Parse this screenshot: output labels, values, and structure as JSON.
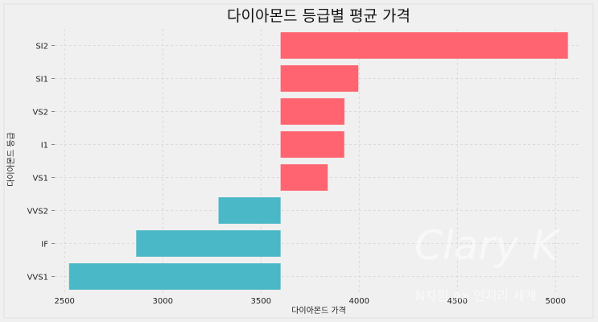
{
  "chart_data": {
    "type": "bar",
    "orientation": "horizontal",
    "title": "다이아몬드 등급별 평균 가격",
    "xlabel": "다이아몬드 가격",
    "ylabel": "다이아몬드 등급",
    "baseline": 3600,
    "xlim": [
      2450,
      5130
    ],
    "xticks": [
      2500,
      3000,
      3500,
      4000,
      4500,
      5000
    ],
    "categories": [
      "SI2",
      "SI1",
      "VS2",
      "I1",
      "VS1",
      "VVS2",
      "IF",
      "VVS1"
    ],
    "values": [
      5063,
      3996,
      3925,
      3924,
      3840,
      3284,
      2865,
      2523
    ],
    "colors": {
      "above": "#ff6470",
      "below": "#4ab8c6",
      "grid": "#d4d4d4",
      "background": "#f0f0f0"
    },
    "grid": true
  },
  "watermark": {
    "line1": "Clary K",
    "line2": "N차원 Ax 인지리 세계"
  }
}
